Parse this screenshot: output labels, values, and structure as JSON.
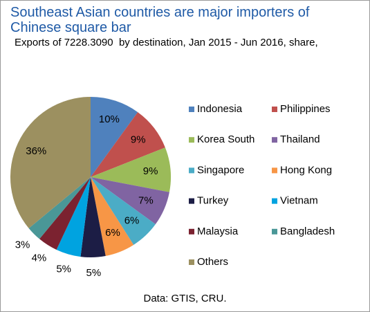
{
  "chart_data": {
    "type": "pie",
    "title": "Southeast Asian countries are major importers of Chinese square bar",
    "subtitle": "Exports of 7228.3090  by destination, Jan 2015 - Jun 2016, share,",
    "source": "Data: GTIS, CRU.",
    "categories": [
      "Indonesia",
      "Philippines",
      "Korea South",
      "Thailand",
      "Singapore",
      "Hong Kong",
      "Turkey",
      "Vietnam",
      "Malaysia",
      "Bangladesh",
      "Others"
    ],
    "values": [
      10,
      9,
      9,
      7,
      6,
      6,
      5,
      5,
      4,
      3,
      36
    ],
    "value_labels": [
      "10%",
      "9%",
      "9%",
      "7%",
      "6%",
      "6%",
      "5%",
      "5%",
      "4%",
      "3%",
      "36%"
    ],
    "colors": [
      "#4f81bd",
      "#c0504d",
      "#9bbb59",
      "#8064a2",
      "#4bacc6",
      "#f79646",
      "#1c1d45",
      "#00a3e0",
      "#7b2230",
      "#4a9797",
      "#9c9060"
    ],
    "legend": "right"
  }
}
